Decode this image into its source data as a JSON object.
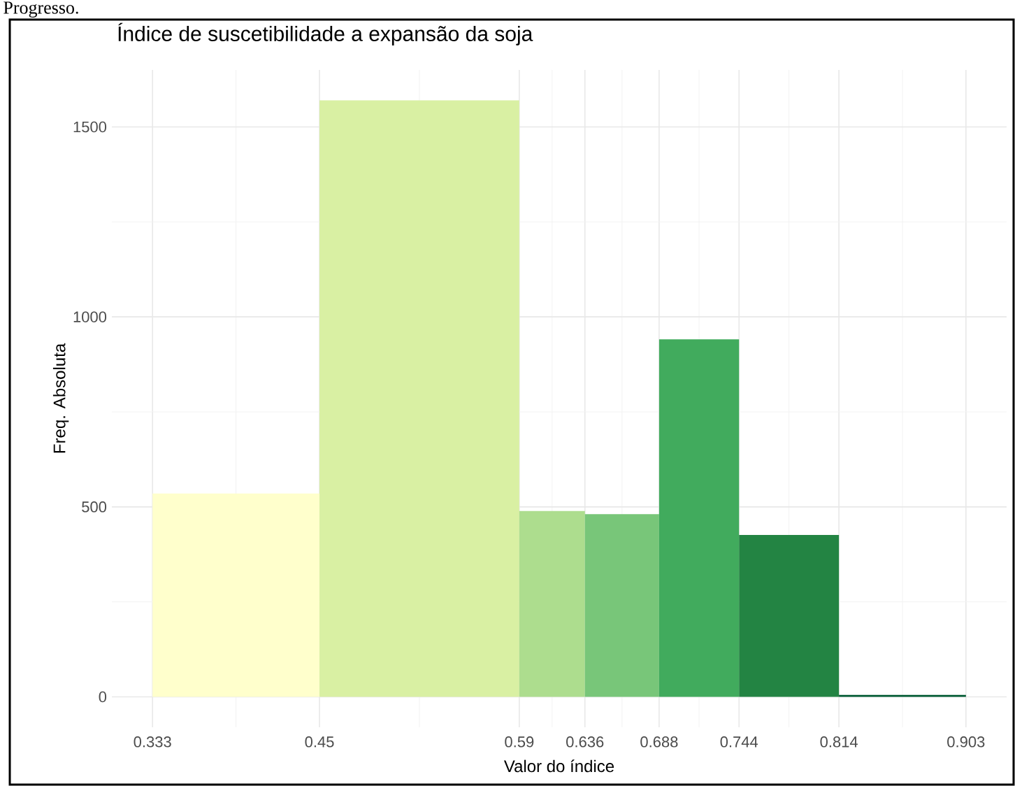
{
  "chart_data": {
    "type": "histogram",
    "title": "Índice de suscetibilidade a expansão da soja",
    "xlabel": "Valor do índice",
    "ylabel": "Freq. Absoluta",
    "annotations": [
      "Progresso."
    ],
    "bins": [
      0.333,
      0.45,
      0.59,
      0.636,
      0.688,
      0.744,
      0.814,
      0.903
    ],
    "values": [
      535,
      1570,
      489,
      481,
      941,
      426,
      5
    ],
    "colors": [
      "#ffffcc",
      "#d9f0a3",
      "#addd8e",
      "#78c679",
      "#41ab5d",
      "#238443",
      "#005a32"
    ],
    "xlim": [
      0.3045,
      0.9315
    ],
    "ylim": [
      -80,
      1650
    ],
    "xticks": [
      0.333,
      0.45,
      0.59,
      0.636,
      0.688,
      0.744,
      0.814,
      0.903
    ],
    "yticks": [
      0,
      500,
      1000,
      1500
    ],
    "grid": true
  }
}
